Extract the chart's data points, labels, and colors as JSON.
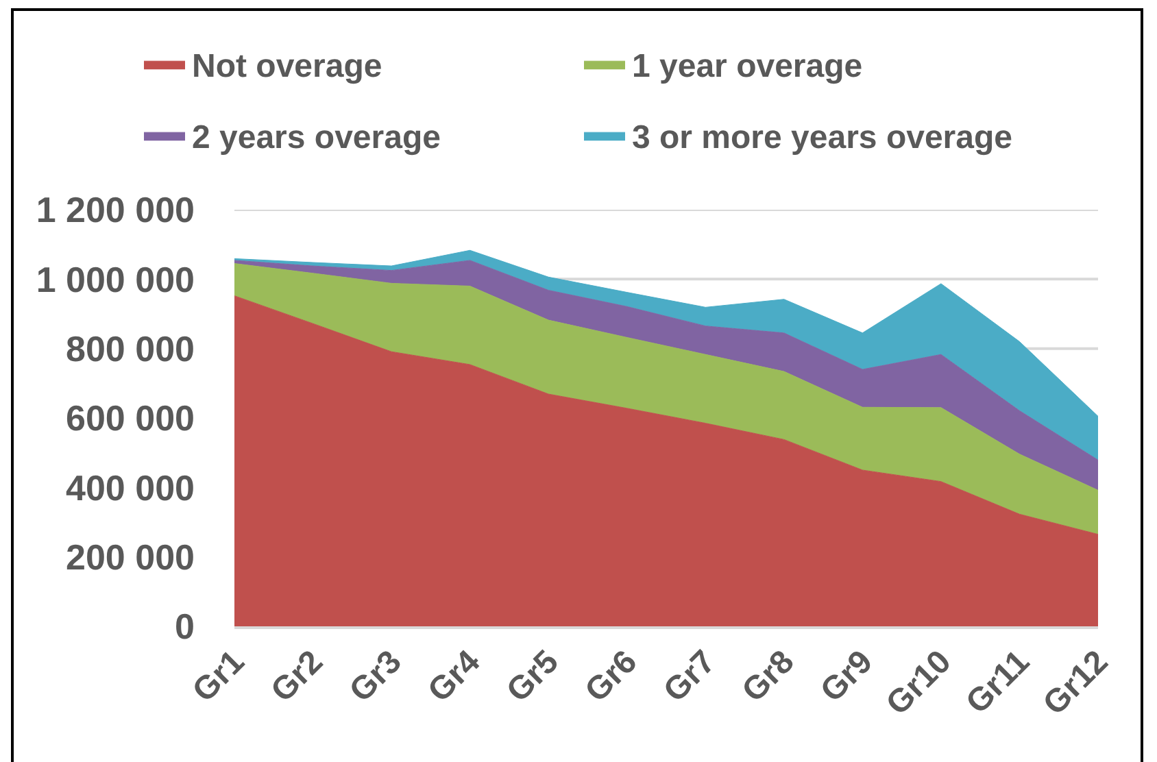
{
  "chart_data": {
    "type": "area",
    "stacked": true,
    "categories": [
      "Gr1",
      "Gr2",
      "Gr3",
      "Gr4",
      "Gr5",
      "Gr6",
      "Gr7",
      "Gr8",
      "Gr9",
      "Gr10",
      "Gr11",
      "Gr12"
    ],
    "series": [
      {
        "name": "Not overage",
        "color": "#c0504d",
        "values": [
          952000,
          872000,
          791000,
          754000,
          669000,
          628000,
          585000,
          538000,
          450000,
          417000,
          323000,
          265000
        ]
      },
      {
        "name": "1 year overage",
        "color": "#9bbb59",
        "values": [
          93000,
          145000,
          197000,
          226000,
          213000,
          204000,
          198000,
          196000,
          181000,
          213000,
          173000,
          127000
        ]
      },
      {
        "name": "2 years overage",
        "color": "#8064a2",
        "values": [
          9000,
          21000,
          37000,
          74000,
          86000,
          89000,
          82000,
          111000,
          109000,
          153000,
          125000,
          87000
        ]
      },
      {
        "name": "3 or more years overage",
        "color": "#4bacc6",
        "values": [
          5000,
          10000,
          13000,
          29000,
          38000,
          41000,
          54000,
          97000,
          105000,
          204000,
          199000,
          126000
        ]
      }
    ],
    "ylim": [
      0,
      1200000
    ],
    "yticks": [
      0,
      {
        "value": 200000,
        "label": "200 000"
      },
      {
        "value": 400000,
        "label": "400 000"
      },
      {
        "value": 600000,
        "label": "600 000"
      },
      {
        "value": 800000,
        "label": "800 000"
      },
      {
        "value": 1000000,
        "label": "1 000 000"
      },
      {
        "value": 1200000,
        "label": "1 200 000"
      }
    ],
    "grid": "y",
    "legend": "top"
  }
}
